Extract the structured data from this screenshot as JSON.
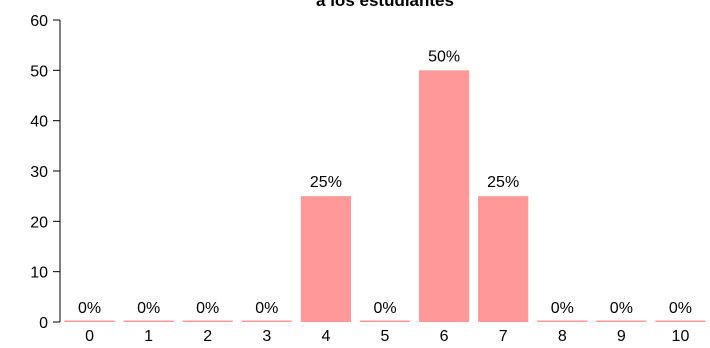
{
  "chart_data": {
    "type": "bar",
    "title": "a los estudiantes",
    "xlabel": "",
    "ylabel": "",
    "categories": [
      "0",
      "1",
      "2",
      "3",
      "4",
      "5",
      "6",
      "7",
      "8",
      "9",
      "10"
    ],
    "values": [
      0,
      0,
      0,
      0,
      25,
      0,
      50,
      25,
      0,
      0,
      0
    ],
    "data_labels": [
      "0%",
      "0%",
      "0%",
      "0%",
      "25%",
      "0%",
      "50%",
      "25%",
      "0%",
      "0%",
      "0%"
    ],
    "ylim": [
      0,
      60
    ],
    "yticks": [
      0,
      10,
      20,
      30,
      40,
      50,
      60
    ],
    "grid": false,
    "colors": {
      "bar": "#ff9999",
      "axis": "#000000"
    }
  }
}
